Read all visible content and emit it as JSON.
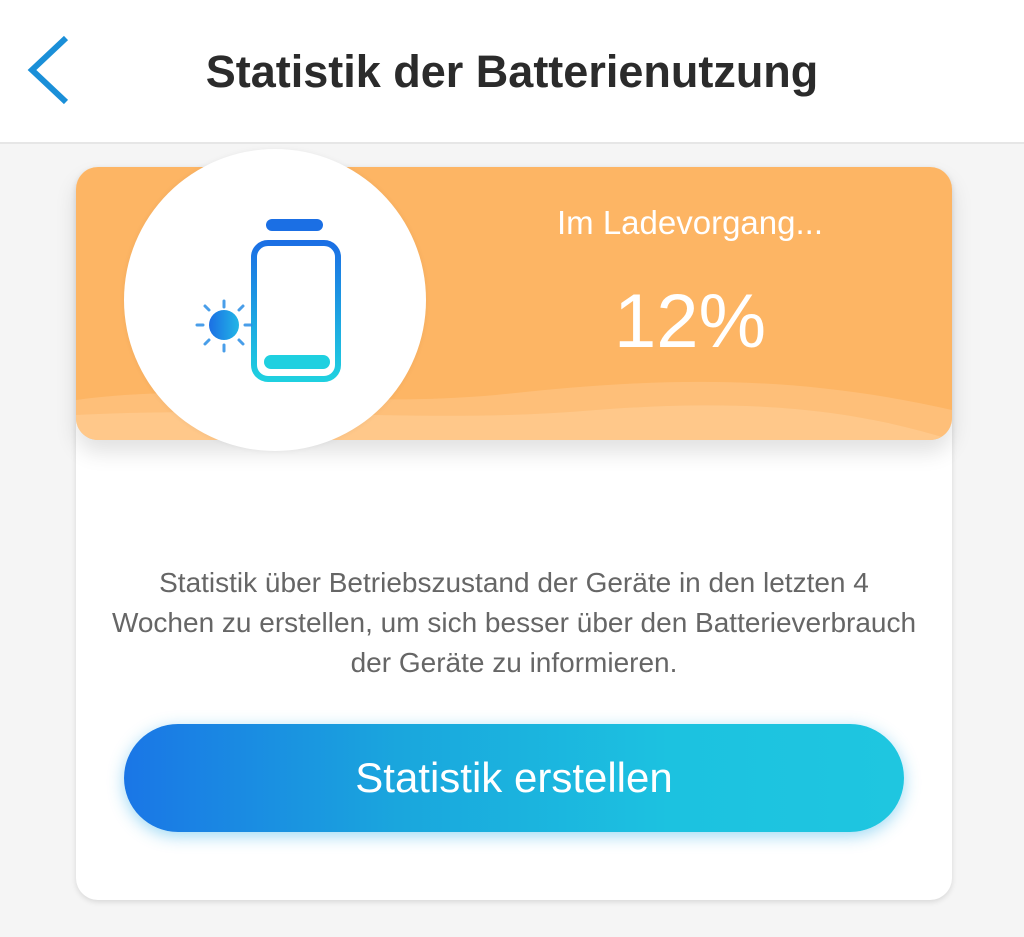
{
  "header": {
    "title": "Statistik der Batterienutzung",
    "back_icon": "chevron-left-icon"
  },
  "banner": {
    "status": "Im Ladevorgang...",
    "percent": "12%",
    "battery_level": 12,
    "color": "#fdb564"
  },
  "description": "Statistik über Betriebszustand der Geräte in den letzten 4 Wochen zu erstellen, um sich besser über den Batterieverbrauch der Geräte zu informieren.",
  "button": {
    "label": "Statistik erstellen"
  },
  "colors": {
    "accent": "#1a9ee0",
    "banner": "#fdb564"
  }
}
